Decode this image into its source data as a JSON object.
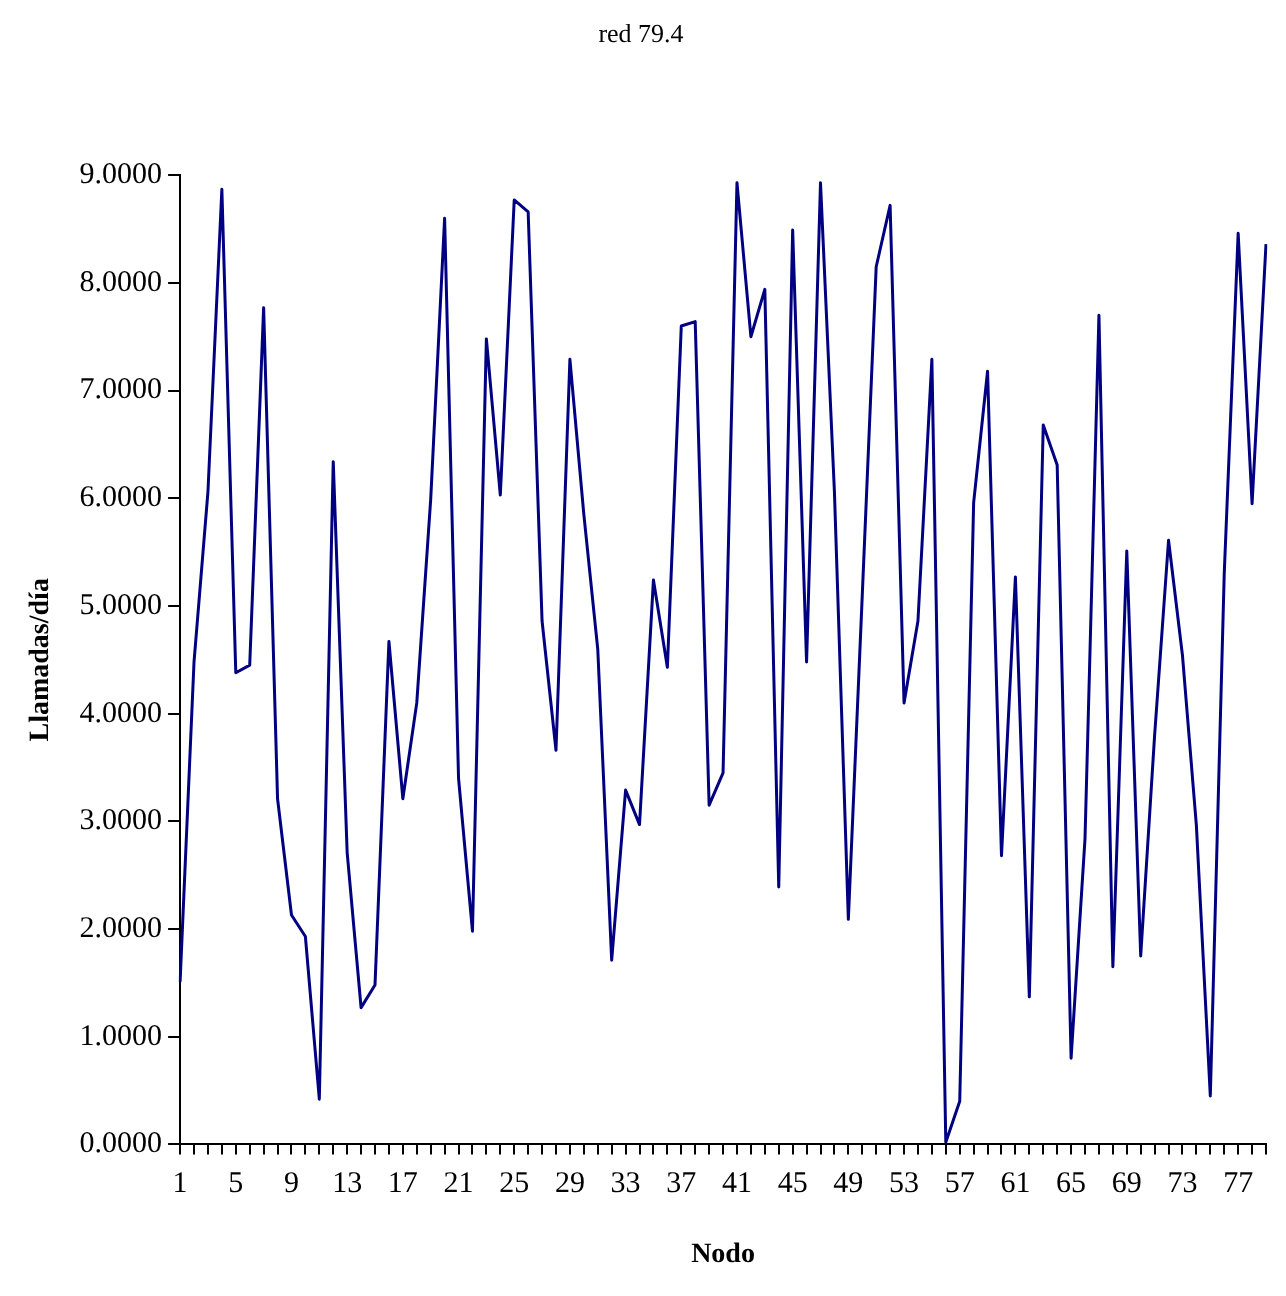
{
  "chart_data": {
    "type": "line",
    "title": "red 79.4",
    "xlabel": "Nodo",
    "ylabel": "Llamadas/día",
    "categories": [
      "1",
      null,
      null,
      null,
      "5",
      null,
      null,
      null,
      "9",
      null,
      null,
      null,
      "13",
      null,
      null,
      null,
      "17",
      null,
      null,
      null,
      "21",
      null,
      null,
      null,
      "25",
      null,
      null,
      null,
      "29",
      null,
      null,
      null,
      "33",
      null,
      null,
      null,
      "37",
      null,
      null,
      null,
      "41",
      null,
      null,
      null,
      "45",
      null,
      null,
      null,
      "49",
      null,
      null,
      null,
      "53",
      null,
      null,
      null,
      "57",
      null,
      null,
      null,
      "61",
      null,
      null,
      null,
      "65",
      null,
      null,
      null,
      "69",
      null,
      null,
      null,
      "73",
      null,
      null,
      null,
      "77",
      null,
      null
    ],
    "series": [
      {
        "color": "#000080",
        "values": [
          1.51,
          4.48,
          6.06,
          8.87,
          4.38,
          4.45,
          7.77,
          3.21,
          2.13,
          1.93,
          0.42,
          6.34,
          2.71,
          1.27,
          1.48,
          4.67,
          3.21,
          4.1,
          5.99,
          8.6,
          3.4,
          1.98,
          7.48,
          6.03,
          8.77,
          8.66,
          4.86,
          3.66,
          7.29,
          5.85,
          4.6,
          1.71,
          3.29,
          2.97,
          5.24,
          4.43,
          7.6,
          7.64,
          3.15,
          3.45,
          8.93,
          7.5,
          7.94,
          2.39,
          8.49,
          4.48,
          8.93,
          6.06,
          2.09,
          5.1,
          8.15,
          8.72,
          4.1,
          4.86,
          7.29,
          0.02,
          0.4,
          5.96,
          7.18,
          2.68,
          5.27,
          1.37,
          6.68,
          6.31,
          0.8,
          2.84,
          7.7,
          1.65,
          5.51,
          1.75,
          3.8,
          5.61,
          4.54,
          2.96,
          0.45,
          5.3,
          8.46,
          5.95,
          8.36
        ]
      }
    ],
    "ylim": [
      0,
      9
    ],
    "yticks": [
      {
        "value": 0,
        "label": "0.0000"
      },
      {
        "value": 1,
        "label": "1.0000"
      },
      {
        "value": 2,
        "label": "2.0000"
      },
      {
        "value": 3,
        "label": "3.0000"
      },
      {
        "value": 4,
        "label": "4.0000"
      },
      {
        "value": 5,
        "label": "5.0000"
      },
      {
        "value": 6,
        "label": "6.0000"
      },
      {
        "value": 7,
        "label": "7.0000"
      },
      {
        "value": 8,
        "label": "8.0000"
      },
      {
        "value": 9,
        "label": "9.0000"
      }
    ],
    "grid": false,
    "legend": false,
    "marker": "none",
    "line_style": "solid"
  }
}
